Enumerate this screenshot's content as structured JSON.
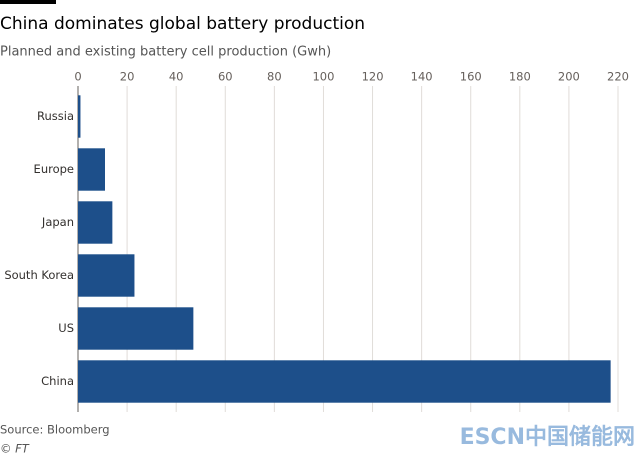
{
  "chart_data": {
    "type": "hbar",
    "title": "China dominates global battery production",
    "subtitle": "Planned and existing battery cell production (Gwh)",
    "categories": [
      "Russia",
      "Europe",
      "Japan",
      "South Korea",
      "US",
      "China"
    ],
    "values": [
      1,
      11,
      14,
      23,
      47,
      217
    ],
    "color": "#1d4f8a",
    "xlim": [
      0,
      220
    ],
    "xticks": [
      0,
      20,
      40,
      60,
      80,
      100,
      120,
      140,
      160,
      180,
      200,
      220
    ],
    "grid": true,
    "source": "Source: Bloomberg",
    "credit": "© FT",
    "watermark": "ESCN中国储能网"
  }
}
